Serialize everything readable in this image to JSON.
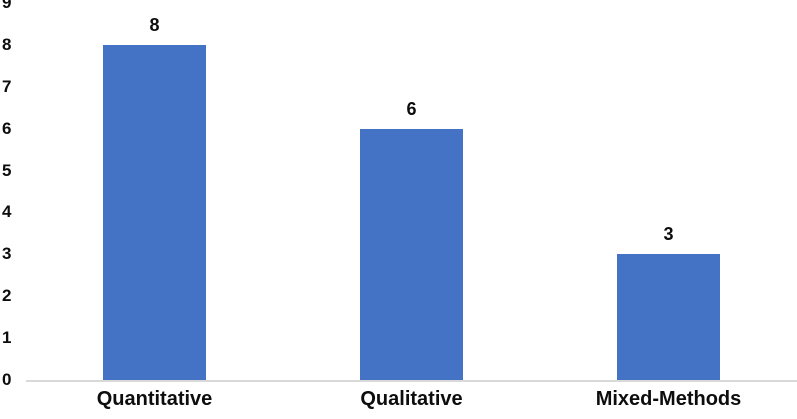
{
  "chart_data": {
    "type": "bar",
    "title": "",
    "xlabel": "",
    "ylabel": "",
    "categories": [
      "Quantitative",
      "Qualitative",
      "Mixed-Methods"
    ],
    "values": [
      8,
      6,
      3
    ],
    "data_labels": [
      "8",
      "6",
      "3"
    ],
    "ylim": [
      0,
      9
    ],
    "yticks": [
      0,
      1,
      2,
      3,
      4,
      5,
      6,
      7,
      8,
      9
    ],
    "grid": false,
    "legend": false,
    "bar_color": "#4472C4",
    "axis_line_color": "#d9d9d9",
    "text_color": "#0d0d0d"
  }
}
